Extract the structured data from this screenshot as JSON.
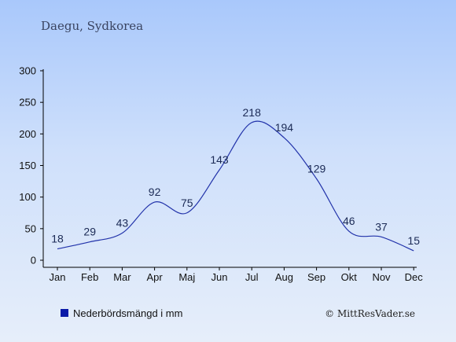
{
  "chart_data": {
    "type": "line",
    "title": "Daegu, Sydkorea",
    "categories": [
      "Jan",
      "Feb",
      "Mar",
      "Apr",
      "Maj",
      "Jun",
      "Jul",
      "Aug",
      "Sep",
      "Okt",
      "Nov",
      "Dec"
    ],
    "series": [
      {
        "name": "Nederbördsmängd i mm",
        "values": [
          18,
          29,
          43,
          92,
          75,
          143,
          218,
          194,
          129,
          46,
          37,
          15
        ]
      }
    ],
    "yticks": [
      "0",
      "50",
      "100",
      "150",
      "200",
      "250",
      "300"
    ],
    "ylim": [
      0,
      300
    ],
    "grid": false,
    "legend": "bottom-left",
    "line_color": "#2233aa",
    "legend_color": "#0a1aa8"
  },
  "credit": "© MittResVader.se"
}
